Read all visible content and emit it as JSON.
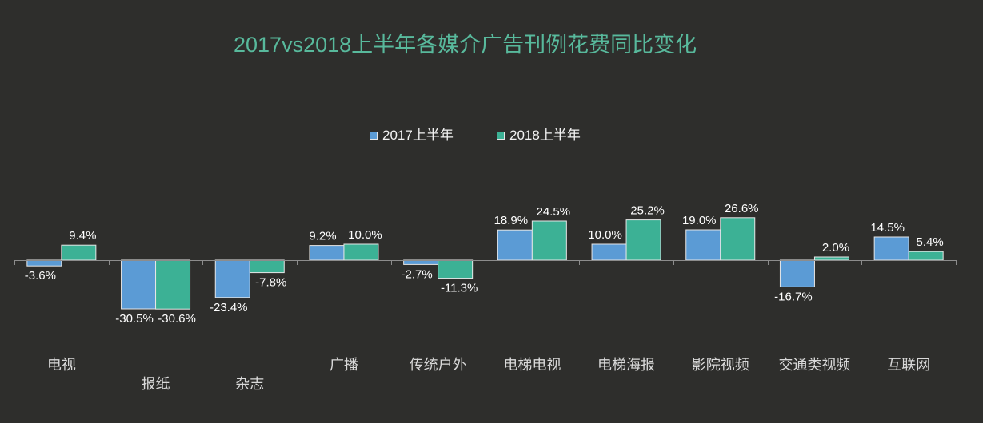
{
  "colors": {
    "background": "#2e2e2c",
    "title": "#58b99c",
    "series_1": "#5b9bd5",
    "series_2": "#3cb195",
    "bar_outline": "#e6e6e6",
    "axis": "#8c8c8c",
    "text": "#d9d9d9"
  },
  "chart_data": {
    "type": "bar",
    "title": "2017vs2018上半年各媒介广告刊例花费同比变化",
    "xlabel": "",
    "ylabel": "",
    "grid": false,
    "legend": "top",
    "categories": [
      "电视",
      "报纸",
      "杂志",
      "广播",
      "传统户外",
      "电梯电视",
      "电梯海报",
      "影院视频",
      "交通类视频",
      "互联网"
    ],
    "series": [
      {
        "name": "2017上半年",
        "values": [
          -3.6,
          -30.5,
          -23.4,
          9.2,
          -2.7,
          18.9,
          10.0,
          19.0,
          -16.7,
          14.5
        ],
        "labels": [
          "-3.6%",
          "-30.5%",
          "-23.4%",
          "9.2%",
          "-2.7%",
          "18.9%",
          "10.0%",
          "19.0%",
          "-16.7%",
          "14.5%"
        ]
      },
      {
        "name": "2018上半年",
        "values": [
          9.4,
          -30.6,
          -7.8,
          10.0,
          -11.3,
          24.5,
          25.2,
          26.6,
          2.0,
          5.4
        ],
        "labels": [
          "9.4%",
          "-30.6%",
          "-7.8%",
          "10.0%",
          "-11.3%",
          "24.5%",
          "25.2%",
          "26.6%",
          "2.0%",
          "5.4%"
        ]
      }
    ]
  }
}
